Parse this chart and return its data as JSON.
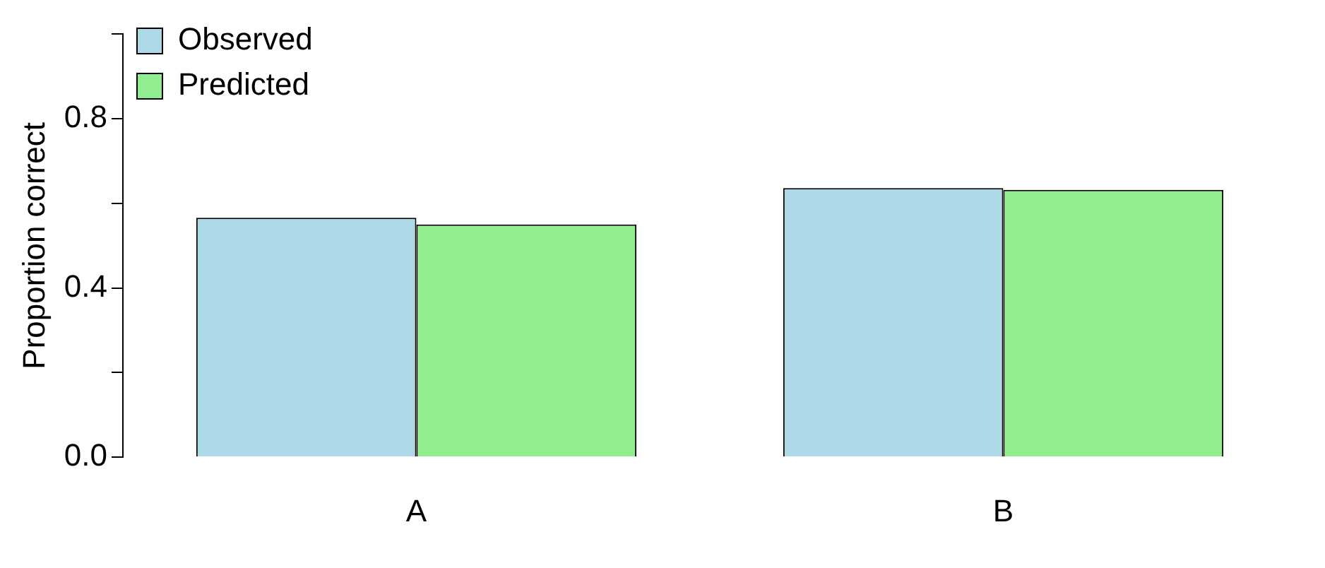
{
  "chart_data": {
    "type": "bar",
    "ylabel": "Proportion correct",
    "categories": [
      "A",
      "B"
    ],
    "series": [
      {
        "name": "Observed",
        "color": "#add8e6",
        "values": [
          0.566,
          0.636
        ]
      },
      {
        "name": "Predicted",
        "color": "#90ee90",
        "values": [
          0.55,
          0.632
        ]
      }
    ],
    "ylim": [
      0,
      1
    ],
    "yticks": [
      {
        "value": 0,
        "label": "0.0"
      },
      {
        "value": 0.2,
        "label": null
      },
      {
        "value": 0.4,
        "label": "0.4"
      },
      {
        "value": 0.6,
        "label": null
      },
      {
        "value": 0.8,
        "label": "0.8"
      },
      {
        "value": 1,
        "label": null
      }
    ],
    "grid": false,
    "legend": "top left"
  }
}
